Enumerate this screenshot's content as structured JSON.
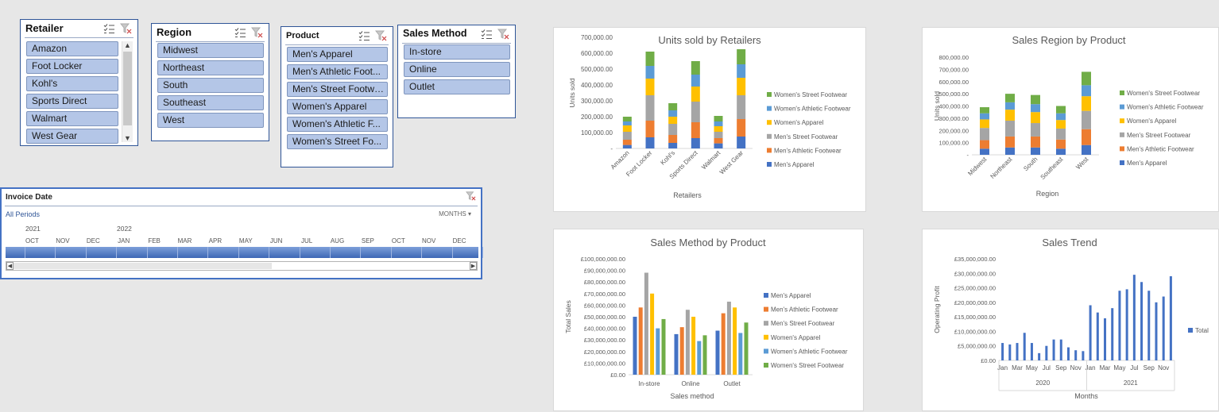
{
  "slicers": {
    "retailer": {
      "title": "Retailer",
      "items": [
        "Amazon",
        "Foot Locker",
        "Kohl's",
        "Sports Direct",
        "Walmart",
        "West Gear"
      ]
    },
    "region": {
      "title": "Region",
      "items": [
        "Midwest",
        "Northeast",
        "South",
        "Southeast",
        "West"
      ]
    },
    "product": {
      "title": "Product",
      "items": [
        "Men's Apparel",
        "Men's Athletic Foot...",
        "Men's Street Footwear",
        "Women's Apparel",
        "Women's Athletic F...",
        "Women's Street Fo..."
      ]
    },
    "sales_method": {
      "title": "Sales Method",
      "items": [
        "In-store",
        "Online",
        "Outlet"
      ]
    }
  },
  "timeline": {
    "title": "Invoice Date",
    "all_periods": "All Periods",
    "level": "MONTHS",
    "years": [
      "2021",
      "2022"
    ],
    "months": [
      "OCT",
      "NOV",
      "DEC",
      "JAN",
      "FEB",
      "MAR",
      "APR",
      "MAY",
      "JUN",
      "JUL",
      "AUG",
      "SEP",
      "OCT",
      "NOV",
      "DEC"
    ]
  },
  "colors": {
    "mens_apparel": "#4472c4",
    "mens_athletic": "#ed7d31",
    "mens_street": "#a5a5a5",
    "womens_apparel": "#ffc000",
    "womens_athletic": "#5b9bd5",
    "womens_street": "#70ad47",
    "total": "#4472c4",
    "slicer_item": "#b4c6e7",
    "slicer_border": "#2f5597"
  },
  "chart_data": [
    {
      "id": "units_by_retailer",
      "type": "bar",
      "stacked": true,
      "title": "Units sold by Retailers",
      "xlabel": "Retailers",
      "ylabel": "Units sold",
      "ylim": [
        0,
        700000
      ],
      "yticks": [
        "-",
        "100,000.00",
        "200,000.00",
        "300,000.00",
        "400,000.00",
        "500,000.00",
        "600,000.00",
        "700,000.00"
      ],
      "categories": [
        "Amazon",
        "Foot Locker",
        "Kohl's",
        "Sports Direct",
        "Walmart",
        "West Gear"
      ],
      "series": [
        {
          "name": "Men's Apparel",
          "values": [
            22000,
            70000,
            35000,
            65000,
            32000,
            75000
          ]
        },
        {
          "name": "Men's Athletic Footwear",
          "values": [
            33000,
            105000,
            50000,
            100000,
            33000,
            110000
          ]
        },
        {
          "name": "Men's Street Footwear",
          "values": [
            50000,
            160000,
            70000,
            130000,
            40000,
            150000
          ]
        },
        {
          "name": "Women's Apparel",
          "values": [
            40000,
            105000,
            45000,
            95000,
            35000,
            110000
          ]
        },
        {
          "name": "Women's Athletic Footwear",
          "values": [
            25000,
            80000,
            40000,
            75000,
            30000,
            85000
          ]
        },
        {
          "name": "Women's Street Footwear",
          "values": [
            30000,
            90000,
            45000,
            85000,
            35000,
            95000
          ]
        }
      ],
      "legend": "right"
    },
    {
      "id": "region_by_product",
      "type": "bar",
      "stacked": true,
      "title": "Sales Region by Product",
      "xlabel": "Region",
      "ylabel": "Units sold",
      "ylim": [
        0,
        800000
      ],
      "yticks": [
        "-",
        "100,000.00",
        "200,000.00",
        "300,000.00",
        "400,000.00",
        "500,000.00",
        "600,000.00",
        "700,000.00",
        "800,000.00"
      ],
      "categories": [
        "Midwest",
        "Northeast",
        "South",
        "Southeast",
        "West"
      ],
      "series": [
        {
          "name": "Men's Apparel",
          "values": [
            50000,
            60000,
            60000,
            50000,
            80000
          ]
        },
        {
          "name": "Men's Athletic Footwear",
          "values": [
            70000,
            90000,
            90000,
            75000,
            130000
          ]
        },
        {
          "name": "Men's Street Footwear",
          "values": [
            100000,
            130000,
            110000,
            90000,
            150000
          ]
        },
        {
          "name": "Women's Apparel",
          "values": [
            70000,
            90000,
            90000,
            70000,
            120000
          ]
        },
        {
          "name": "Women's Athletic Footwear",
          "values": [
            50000,
            60000,
            65000,
            55000,
            90000
          ]
        },
        {
          "name": "Women's Street Footwear",
          "values": [
            50000,
            70000,
            75000,
            60000,
            110000
          ]
        }
      ],
      "legend": "right"
    },
    {
      "id": "method_by_product",
      "type": "bar",
      "stacked": false,
      "title": "Sales Method by Product",
      "xlabel": "Sales method",
      "ylabel": "Total Sales",
      "ylim": [
        0,
        100000000
      ],
      "yticks": [
        "£0.00",
        "£10,000,000.00",
        "£20,000,000.00",
        "£30,000,000.00",
        "£40,000,000.00",
        "£50,000,000.00",
        "£60,000,000.00",
        "£70,000,000.00",
        "£80,000,000.00",
        "£90,000,000.00",
        "£100,000,000.00"
      ],
      "categories": [
        "In-store",
        "Online",
        "Outlet"
      ],
      "series": [
        {
          "name": "Men's Apparel",
          "values": [
            50000000,
            35000000,
            38000000
          ]
        },
        {
          "name": "Men's Athletic Footwear",
          "values": [
            58000000,
            41000000,
            53000000
          ]
        },
        {
          "name": "Men's Street Footwear",
          "values": [
            88000000,
            56000000,
            63000000
          ]
        },
        {
          "name": "Women's Apparel",
          "values": [
            70000000,
            50000000,
            58000000
          ]
        },
        {
          "name": "Women's Athletic Footwear",
          "values": [
            40000000,
            29000000,
            36000000
          ]
        },
        {
          "name": "Women's Street Footwear",
          "values": [
            48000000,
            34000000,
            45000000
          ]
        }
      ],
      "legend": "right"
    },
    {
      "id": "sales_trend",
      "type": "bar",
      "stacked": false,
      "title": "Sales Trend",
      "xlabel": "Months",
      "ylabel": "Operating Profit",
      "ylim": [
        0,
        35000000
      ],
      "yticks": [
        "£0.00",
        "£5,000,000.00",
        "£10,000,000.00",
        "£15,000,000.00",
        "£20,000,000.00",
        "£25,000,000.00",
        "£30,000,000.00",
        "£35,000,000.00"
      ],
      "month_labels": [
        "Jan",
        "Mar",
        "May",
        "Jul",
        "Sep",
        "Nov",
        "Jan",
        "Mar",
        "May",
        "Jul",
        "Sep",
        "Nov"
      ],
      "years": [
        "2020",
        "2021"
      ],
      "series": [
        {
          "name": "Total",
          "values": [
            6000000,
            5500000,
            6000000,
            9500000,
            6000000,
            2500000,
            5000000,
            7200000,
            7200000,
            4500000,
            3500000,
            3200000,
            19000000,
            16500000,
            14500000,
            18000000,
            24000000,
            24500000,
            29500000,
            27000000,
            24000000,
            20000000,
            22000000,
            29000000
          ]
        }
      ],
      "legend": "right"
    }
  ]
}
